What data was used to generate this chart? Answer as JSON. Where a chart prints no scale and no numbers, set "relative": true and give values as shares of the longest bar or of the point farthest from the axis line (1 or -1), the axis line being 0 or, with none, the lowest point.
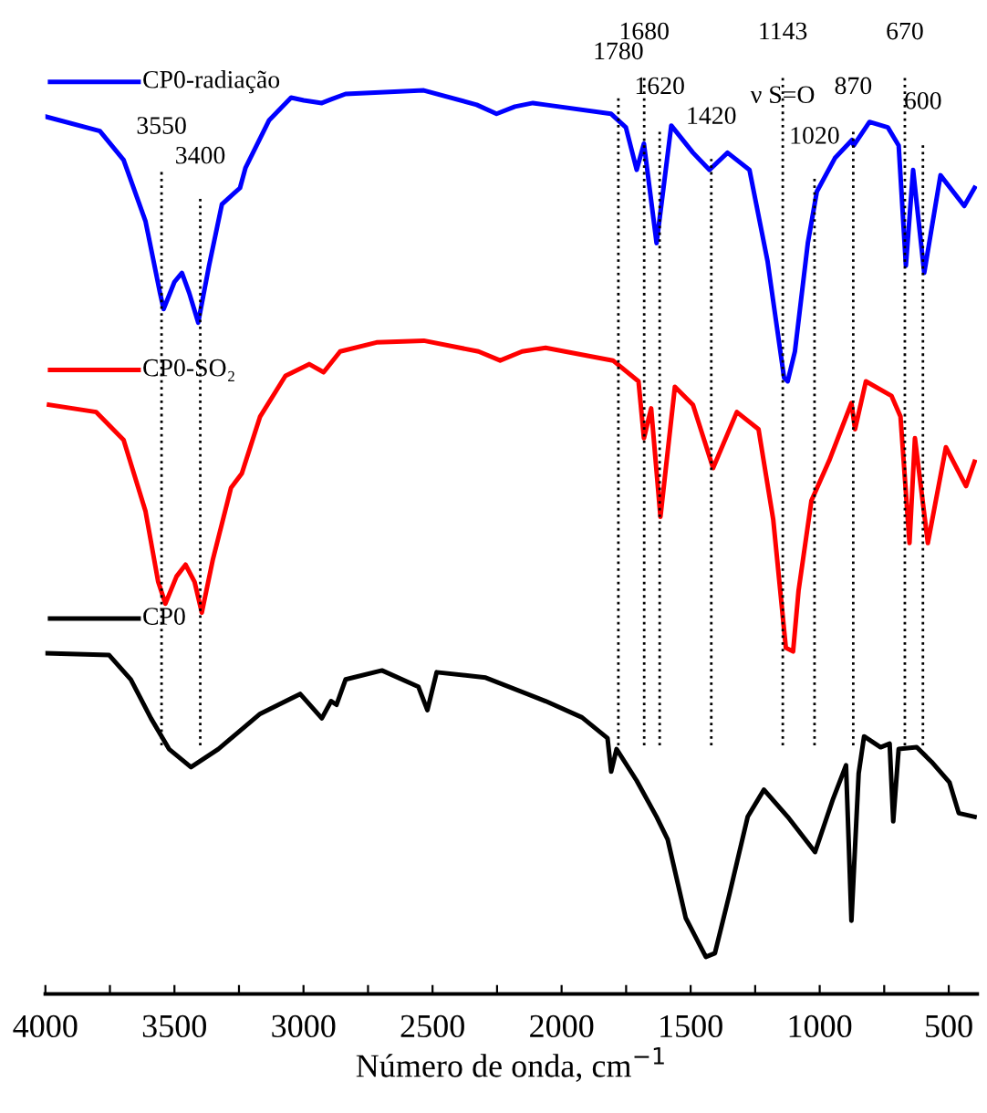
{
  "chart_data": {
    "type": "line",
    "relative": true,
    "xlabel": "Número de onda, cm$^{−1}$",
    "xlim": [
      4000,
      390
    ],
    "xticks": [
      4000,
      {
        "value": 3750,
        "label": null
      },
      3500,
      {
        "value": 3250,
        "label": null
      },
      3000,
      {
        "value": 2750,
        "label": null
      },
      2500,
      {
        "value": 2250,
        "label": null
      },
      2000,
      {
        "value": 1750,
        "label": null
      },
      1500,
      {
        "value": 1250,
        "label": null
      },
      1000,
      {
        "value": 750,
        "label": null
      },
      500
    ],
    "grid": false,
    "legend": "top left",
    "marker": "none",
    "line_style": "solid",
    "series": [
      {
        "name": "CP0-radiação",
        "color": "#0000ff",
        "x": [
          4000,
          3789,
          3697,
          3612,
          3556,
          3542,
          3500,
          3471,
          3443,
          3408,
          3366,
          3316,
          3246,
          3225,
          3133,
          3048,
          2999,
          2929,
          2893,
          2837,
          2534,
          2329,
          2252,
          2181,
          2111,
          2062,
          1808,
          1751,
          1709,
          1681,
          1632,
          1575,
          1491,
          1427,
          1357,
          1272,
          1202,
          1138,
          1124,
          1096,
          1046,
          1011,
          941,
          875,
          868,
          807,
          736,
          694,
          666,
          638,
          595,
          532,
          440,
          400
        ],
        "values": [
          0.971,
          0.955,
          0.923,
          0.855,
          0.776,
          0.758,
          0.788,
          0.798,
          0.776,
          0.743,
          0.806,
          0.874,
          0.892,
          0.914,
          0.967,
          0.992,
          0.989,
          0.986,
          0.99,
          0.996,
          1.0,
          0.984,
          0.974,
          0.982,
          0.986,
          0.984,
          0.974,
          0.959,
          0.912,
          0.941,
          0.831,
          0.961,
          0.931,
          0.912,
          0.931,
          0.912,
          0.811,
          0.682,
          0.678,
          0.711,
          0.831,
          0.888,
          0.925,
          0.945,
          0.939,
          0.965,
          0.959,
          0.939,
          0.806,
          0.912,
          0.798,
          0.906,
          0.872,
          0.892
        ]
      },
      {
        "name": "CP0-SO₂",
        "color": "#ff0000",
        "x": [
          3986,
          3803,
          3697,
          3612,
          3563,
          3535,
          3492,
          3457,
          3422,
          3394,
          3351,
          3281,
          3239,
          3168,
          3070,
          2978,
          2922,
          2858,
          2717,
          2534,
          2322,
          2238,
          2153,
          2062,
          1801,
          1702,
          1681,
          1653,
          1617,
          1561,
          1491,
          1413,
          1321,
          1237,
          1180,
          1131,
          1103,
          1082,
          1032,
          962,
          877,
          863,
          821,
          722,
          687,
          652,
          631,
          581,
          511,
          433,
          400
        ],
        "values": [
          0.652,
          0.644,
          0.613,
          0.534,
          0.456,
          0.432,
          0.462,
          0.475,
          0.456,
          0.422,
          0.481,
          0.56,
          0.576,
          0.639,
          0.684,
          0.697,
          0.688,
          0.711,
          0.721,
          0.723,
          0.711,
          0.701,
          0.711,
          0.715,
          0.701,
          0.678,
          0.615,
          0.648,
          0.528,
          0.672,
          0.652,
          0.582,
          0.644,
          0.625,
          0.525,
          0.383,
          0.379,
          0.446,
          0.546,
          0.591,
          0.654,
          0.625,
          0.678,
          0.662,
          0.639,
          0.499,
          0.615,
          0.499,
          0.605,
          0.562,
          0.589
        ]
      },
      {
        "name": "CP0",
        "color": "#000000",
        "x": [
          4000,
          3753,
          3669,
          3591,
          3521,
          3436,
          3330,
          3168,
          3013,
          2929,
          2893,
          2872,
          2837,
          2696,
          2555,
          2520,
          2484,
          2294,
          2062,
          1921,
          1822,
          1808,
          1787,
          1709,
          1632,
          1589,
          1519,
          1441,
          1406,
          1350,
          1279,
          1216,
          1124,
          1018,
          948,
          898,
          877,
          849,
          828,
          764,
          729,
          715,
          694,
          624,
          567,
          497,
          461,
          400
        ],
        "values": [
          0.377,
          0.375,
          0.348,
          0.305,
          0.271,
          0.251,
          0.271,
          0.31,
          0.332,
          0.305,
          0.324,
          0.32,
          0.348,
          0.358,
          0.34,
          0.314,
          0.356,
          0.35,
          0.324,
          0.306,
          0.283,
          0.246,
          0.271,
          0.236,
          0.196,
          0.171,
          0.084,
          0.041,
          0.045,
          0.11,
          0.196,
          0.226,
          0.196,
          0.157,
          0.216,
          0.253,
          0.081,
          0.244,
          0.285,
          0.273,
          0.277,
          0.191,
          0.271,
          0.273,
          0.257,
          0.234,
          0.2,
          0.196
        ]
      }
    ],
    "ref_lines": [
      {
        "axis": "x",
        "value": 3550,
        "label": "3550",
        "line_style": "dotted",
        "color": "#000000"
      },
      {
        "axis": "x",
        "value": 3400,
        "label": "3400",
        "line_style": "dotted",
        "color": "#000000"
      },
      {
        "axis": "x",
        "value": 1780,
        "label": "1780",
        "line_style": "dotted",
        "color": "#000000"
      },
      {
        "axis": "x",
        "value": 1680,
        "label": "1680",
        "line_style": "dotted",
        "color": "#000000"
      },
      {
        "axis": "x",
        "value": 1620,
        "label": "1620",
        "line_style": "dotted",
        "color": "#000000"
      },
      {
        "axis": "x",
        "value": 1420,
        "label": "1420",
        "line_style": "dotted",
        "color": "#000000"
      },
      {
        "axis": "x",
        "value": 1143,
        "label": "1143",
        "line_style": "dotted",
        "color": "#000000"
      },
      {
        "axis": "x",
        "value": 1020,
        "label": "1020",
        "line_style": "dotted",
        "color": "#000000"
      },
      {
        "axis": "x",
        "value": 870,
        "label": "870",
        "line_style": "dotted",
        "color": "#000000"
      },
      {
        "axis": "x",
        "value": 670,
        "label": "670",
        "line_style": "dotted",
        "color": "#000000"
      },
      {
        "axis": "x",
        "value": 600,
        "label": "600",
        "line_style": "dotted",
        "color": "#000000"
      }
    ],
    "annotations": [
      {
        "text": "ν S=O",
        "x": 1143,
        "y": 0.99
      }
    ]
  }
}
